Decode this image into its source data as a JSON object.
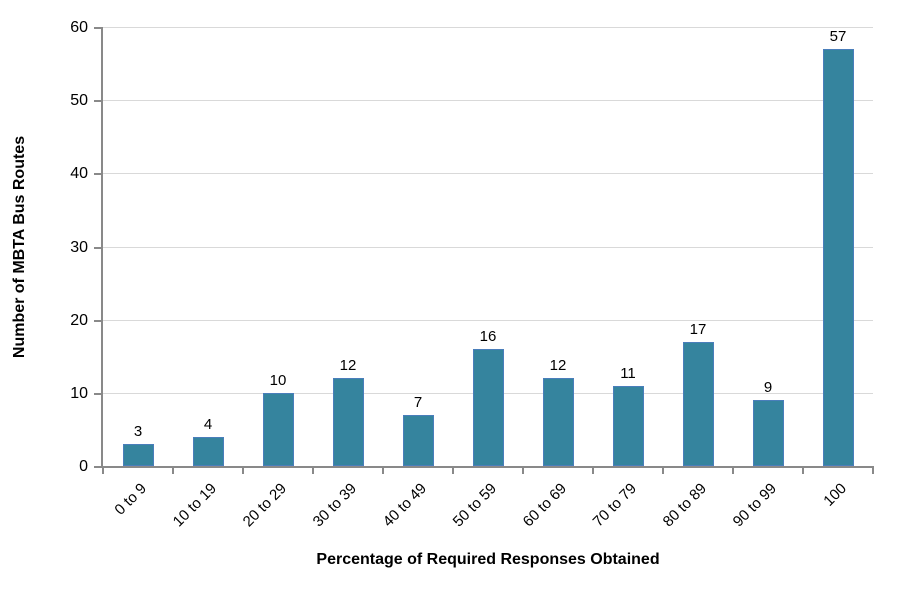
{
  "chart_data": {
    "type": "bar",
    "title": "",
    "categories": [
      "0 to 9",
      "10 to 19",
      "20 to 29",
      "30 to 39",
      "40 to 49",
      "50 to 59",
      "60 to 69",
      "70 to 79",
      "80 to 89",
      "90 to 99",
      "100"
    ],
    "values": [
      3,
      4,
      10,
      12,
      7,
      16,
      12,
      11,
      17,
      9,
      57
    ],
    "data_labels": [
      "3",
      "4",
      "10",
      "12",
      "7",
      "16",
      "12",
      "11",
      "17",
      "9",
      "57"
    ],
    "xlabel": "Percentage of Required Responses Obtained",
    "ylabel": "Number of MBTA Bus Routes",
    "ylim": [
      0,
      60
    ],
    "ytick_step": 10,
    "ytick_labels": [
      "0",
      "10",
      "20",
      "30",
      "40",
      "50",
      "60"
    ],
    "grid": true,
    "legend": false,
    "colors": {
      "bar_fill": "#35849E",
      "bar_border": "#4A7EBB",
      "gridline": "#D9D9D9",
      "axis": "#898989",
      "text": "#000000"
    }
  }
}
